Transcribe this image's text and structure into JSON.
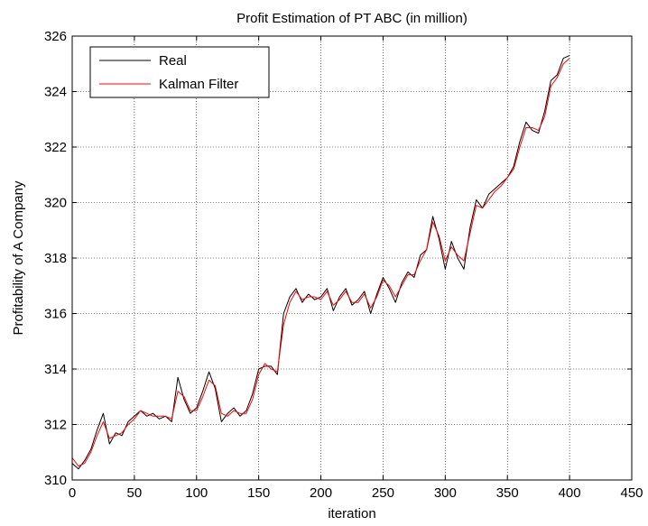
{
  "chart_data": {
    "type": "line",
    "title": "Profit Estimation of PT ABC (in million)",
    "xlabel": "iteration",
    "ylabel": "Profitability of A Company",
    "xlim": [
      0,
      450
    ],
    "ylim": [
      310,
      326
    ],
    "xticks": [
      0,
      50,
      100,
      150,
      200,
      250,
      300,
      350,
      400,
      450
    ],
    "yticks": [
      310,
      312,
      314,
      316,
      318,
      320,
      322,
      324,
      326
    ],
    "grid": true,
    "legend_position": "top-left",
    "x": [
      0,
      5,
      10,
      15,
      20,
      25,
      30,
      35,
      40,
      45,
      50,
      55,
      60,
      65,
      70,
      75,
      80,
      85,
      90,
      95,
      100,
      105,
      110,
      115,
      120,
      125,
      130,
      135,
      140,
      145,
      150,
      155,
      160,
      165,
      170,
      175,
      180,
      185,
      190,
      195,
      200,
      205,
      210,
      215,
      220,
      225,
      230,
      235,
      240,
      245,
      250,
      255,
      260,
      265,
      270,
      275,
      280,
      285,
      290,
      295,
      300,
      305,
      310,
      315,
      320,
      325,
      330,
      335,
      340,
      345,
      350,
      355,
      360,
      365,
      370,
      375,
      380,
      385,
      390,
      395,
      400
    ],
    "series": [
      {
        "name": "Real",
        "color": "#000000",
        "values": [
          310.6,
          310.4,
          310.7,
          311.1,
          311.8,
          312.4,
          311.3,
          311.7,
          311.6,
          312.1,
          312.3,
          312.5,
          312.3,
          312.4,
          312.2,
          312.3,
          312.1,
          313.7,
          312.9,
          312.4,
          312.6,
          313.2,
          313.9,
          313.3,
          312.1,
          312.4,
          312.6,
          312.3,
          312.5,
          313.1,
          314.0,
          314.1,
          314.1,
          313.8,
          316.0,
          316.6,
          316.9,
          316.4,
          316.7,
          316.5,
          316.6,
          316.9,
          316.1,
          316.6,
          316.9,
          316.3,
          316.5,
          316.8,
          316.0,
          316.7,
          317.3,
          316.9,
          316.4,
          317.1,
          317.5,
          317.3,
          318.1,
          318.3,
          319.5,
          318.7,
          317.6,
          318.6,
          318.0,
          317.6,
          319.1,
          320.1,
          319.8,
          320.3,
          320.5,
          320.7,
          320.9,
          321.3,
          322.2,
          322.9,
          322.6,
          322.5,
          323.3,
          324.4,
          324.6,
          325.2,
          325.3
        ]
      },
      {
        "name": "Kalman Filter",
        "color": "#ff0000",
        "values": [
          310.8,
          310.5,
          310.6,
          311.0,
          311.6,
          312.1,
          311.5,
          311.6,
          311.7,
          312.0,
          312.2,
          312.5,
          312.4,
          312.3,
          312.3,
          312.3,
          312.2,
          313.2,
          313.0,
          312.5,
          312.5,
          313.0,
          313.6,
          313.4,
          312.4,
          312.3,
          312.5,
          312.4,
          312.4,
          312.9,
          313.8,
          314.2,
          314.0,
          313.9,
          315.6,
          316.4,
          316.8,
          316.5,
          316.6,
          316.6,
          316.5,
          316.8,
          316.3,
          316.5,
          316.8,
          316.4,
          316.4,
          316.7,
          316.2,
          316.6,
          317.2,
          317.0,
          316.6,
          317.0,
          317.4,
          317.4,
          317.9,
          318.3,
          319.3,
          318.8,
          317.9,
          318.4,
          318.1,
          317.9,
          318.9,
          319.9,
          319.8,
          320.1,
          320.4,
          320.6,
          320.9,
          321.2,
          322.0,
          322.7,
          322.7,
          322.6,
          323.1,
          324.2,
          324.5,
          325.0,
          325.2
        ]
      }
    ]
  }
}
